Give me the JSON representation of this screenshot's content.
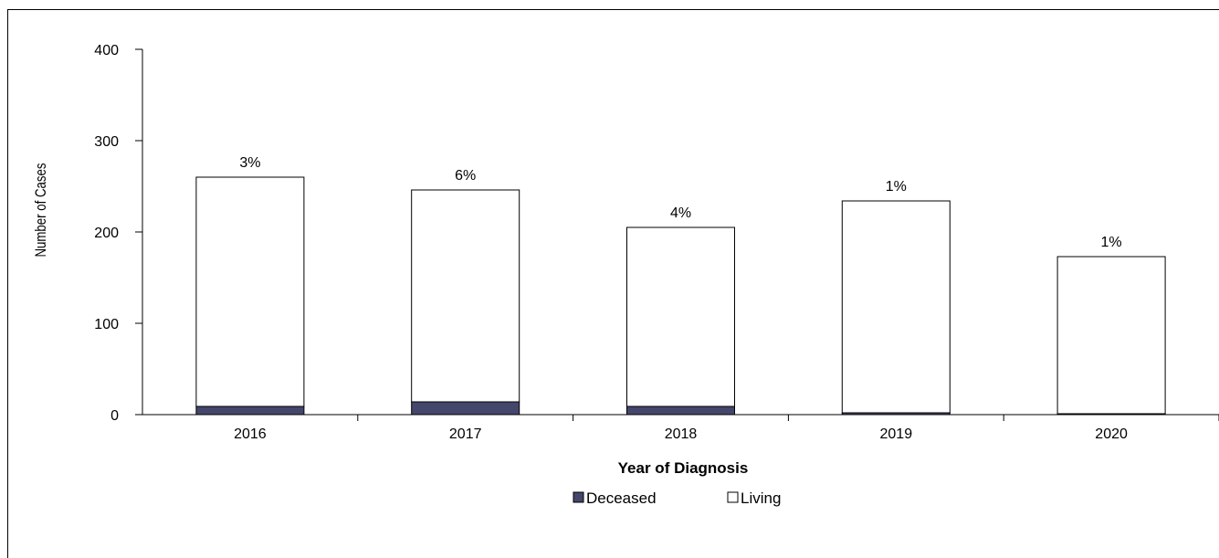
{
  "chart_data": {
    "type": "bar",
    "stacked": true,
    "categories": [
      "2016",
      "2017",
      "2018",
      "2019",
      "2020"
    ],
    "series": [
      {
        "name": "Deceased",
        "values": [
          9,
          14,
          9,
          2,
          1
        ],
        "color": "#44466b"
      },
      {
        "name": "Living",
        "values": [
          251,
          232,
          196,
          232,
          172
        ],
        "color": "#ffffff"
      }
    ],
    "data_labels": [
      "3%",
      "6%",
      "4%",
      "1%",
      "1%"
    ],
    "xlabel": "Year of Diagnosis",
    "ylabel": "Number of Cases",
    "ylim": [
      0,
      400
    ],
    "yticks": [
      "0",
      "100",
      "200",
      "300",
      "400"
    ],
    "legend": {
      "position": "bottom",
      "entries": [
        "Deceased",
        "Living"
      ]
    },
    "grid": false
  }
}
